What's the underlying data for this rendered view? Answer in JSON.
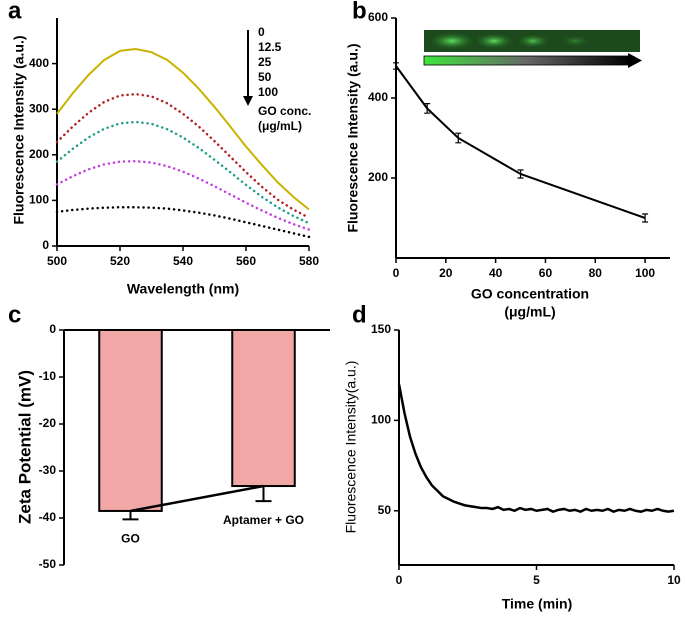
{
  "chart_data": [
    {
      "type": "line",
      "panel": "a",
      "xlabel": "Wavelength (nm)",
      "ylabel": "Fluorescence Intensity (a.u.)",
      "x": [
        500,
        505,
        510,
        515,
        520,
        525,
        530,
        535,
        540,
        545,
        550,
        555,
        560,
        565,
        570,
        575,
        580
      ],
      "series": [
        {
          "name": "0",
          "color": "#c9b300",
          "style": "solid",
          "values": [
            290,
            335,
            375,
            408,
            428,
            432,
            425,
            408,
            380,
            345,
            305,
            262,
            218,
            178,
            140,
            108,
            80
          ]
        },
        {
          "name": "12.5",
          "color": "#b22222",
          "style": "dotted",
          "values": [
            228,
            262,
            292,
            316,
            330,
            333,
            328,
            313,
            290,
            262,
            230,
            196,
            162,
            130,
            102,
            80,
            62
          ]
        },
        {
          "name": "25",
          "color": "#1f9e89",
          "style": "dotted",
          "values": [
            185,
            213,
            238,
            257,
            269,
            272,
            268,
            256,
            238,
            215,
            189,
            162,
            134,
            108,
            85,
            66,
            50
          ]
        },
        {
          "name": "50",
          "color": "#c23fe0",
          "style": "dotted",
          "values": [
            135,
            153,
            168,
            179,
            185,
            186,
            183,
            175,
            163,
            148,
            131,
            113,
            95,
            78,
            62,
            48,
            36
          ]
        },
        {
          "name": "100",
          "color": "#000000",
          "style": "dotted",
          "values": [
            75,
            79,
            82,
            84,
            85,
            85,
            84,
            82,
            78,
            73,
            67,
            60,
            52,
            44,
            36,
            28,
            20
          ]
        }
      ],
      "legend_title": [
        "GO conc.",
        "(μg/mL)"
      ],
      "xlim": [
        500,
        580
      ],
      "xticks": [
        500,
        520,
        540,
        560,
        580
      ],
      "ylim": [
        0,
        500
      ],
      "yticks": [
        0,
        100,
        200,
        300,
        400
      ]
    },
    {
      "type": "line",
      "panel": "b",
      "xlabel": [
        "GO concentration",
        "(μg/mL)"
      ],
      "ylabel": "Fluorescence Intensity (a.u.)",
      "x": [
        0,
        12.5,
        25,
        50,
        100
      ],
      "values": [
        480,
        374,
        300,
        210,
        100
      ],
      "errors": [
        8,
        12,
        12,
        10,
        10
      ],
      "color": "#000000",
      "xlim": [
        0,
        110
      ],
      "xticks": [
        0,
        20,
        40,
        60,
        80,
        100
      ],
      "ylim": [
        0,
        600
      ],
      "yticks": [
        200,
        400,
        600
      ]
    },
    {
      "type": "bar",
      "panel": "c",
      "ylabel": "Zeta Potential (mV)",
      "categories": [
        "GO",
        "Aptamer + GO"
      ],
      "values": [
        -38.5,
        -33.2
      ],
      "errors": [
        1.8,
        3.2
      ],
      "color": "#f2a7a7",
      "connect": true,
      "ylim": [
        -50,
        0
      ],
      "yticks": [
        0,
        -10,
        -20,
        -30,
        -40,
        -50
      ]
    },
    {
      "type": "line",
      "panel": "d",
      "xlabel": "Time (min)",
      "ylabel": "Fluorescence Intensity(a.u.)",
      "color": "#000000",
      "x": [
        0,
        0.2,
        0.4,
        0.6,
        0.8,
        1,
        1.2,
        1.4,
        1.6,
        1.8,
        2,
        2.2,
        2.4,
        2.6,
        2.8,
        3,
        3.2,
        3.4,
        3.6,
        3.8,
        4,
        4.2,
        4.4,
        4.6,
        4.8,
        5,
        5.2,
        5.4,
        5.6,
        5.8,
        6,
        6.2,
        6.4,
        6.6,
        6.8,
        7,
        7.2,
        7.4,
        7.6,
        7.8,
        8,
        8.2,
        8.4,
        8.6,
        8.8,
        9,
        9.2,
        9.4,
        9.6,
        9.8,
        10
      ],
      "values": [
        120,
        104,
        91,
        81.5,
        74,
        68.5,
        64,
        61,
        58,
        56.5,
        55,
        54,
        53,
        52.5,
        52,
        51.5,
        51.5,
        51,
        52,
        50.5,
        51,
        50,
        51.5,
        50.5,
        51,
        50,
        50.5,
        51,
        49.5,
        50.5,
        51,
        50,
        50.5,
        49.5,
        51,
        50,
        50.5,
        50,
        51,
        49.5,
        50.5,
        50,
        51,
        50,
        49.5,
        50.5,
        50,
        51,
        50,
        49.5,
        50
      ],
      "xlim": [
        0,
        10
      ],
      "xticks": [
        0,
        5,
        10
      ],
      "ylim": [
        20,
        150
      ],
      "yticks": [
        50,
        100,
        150
      ]
    }
  ]
}
